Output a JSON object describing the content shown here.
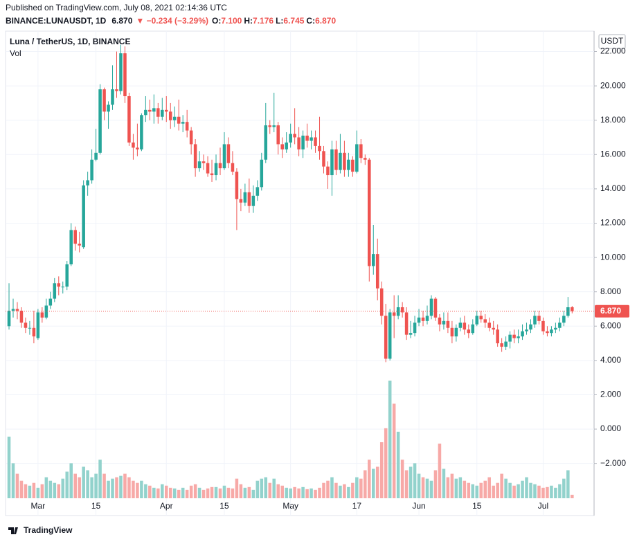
{
  "header": {
    "published": "Published on TradingView.com, July 08, 2021 02:14:36 UTC",
    "symbol": "BINANCE:LUNAUSDT, 1D",
    "price": "6.870",
    "change": "▼ −0.234 (−3.29%)",
    "o_label": "O:",
    "o_value": "7.100",
    "h_label": "H:",
    "h_value": "7.176",
    "l_label": "L:",
    "l_value": "6.745",
    "c_label": "C:",
    "c_value": "6.870",
    "footer": "TradingView"
  },
  "chart_data": {
    "type": "candlestick",
    "title": "Luna / TetherUS, 1D, BINANCE",
    "volume_label": "Vol",
    "currency": "USDT",
    "up_color": "#26a69a",
    "down_color": "#ef5350",
    "volume_up_color": "#92d2cc",
    "volume_down_color": "#f7a9a7",
    "grid": true,
    "last_price": {
      "value": 6.87,
      "label": "6.870"
    },
    "ylim": [
      -4.03,
      23.19
    ],
    "yticks": [
      {
        "value": 22,
        "label": "22.000"
      },
      {
        "value": 20,
        "label": "20.000"
      },
      {
        "value": 18,
        "label": "18.000"
      },
      {
        "value": 16,
        "label": "16.000"
      },
      {
        "value": 14,
        "label": "14.000"
      },
      {
        "value": 12,
        "label": "12.000"
      },
      {
        "value": 10,
        "label": "10.000"
      },
      {
        "value": 8,
        "label": "8.000"
      },
      {
        "value": 6,
        "label": "6.000"
      },
      {
        "value": 4,
        "label": "4.000"
      },
      {
        "value": 2,
        "label": "2.000"
      },
      {
        "value": 0,
        "label": "0.000"
      },
      {
        "value": -2,
        "label": "−2.000"
      }
    ],
    "xlim": [
      -0.84,
      141.3
    ],
    "xticks": [
      {
        "value": 7,
        "label": "Mar"
      },
      {
        "value": 21,
        "label": "15"
      },
      {
        "value": 38,
        "label": "Apr"
      },
      {
        "value": 52,
        "label": "15"
      },
      {
        "value": 68,
        "label": "May"
      },
      {
        "value": 84,
        "label": "17"
      },
      {
        "value": 99,
        "label": "Jun"
      },
      {
        "value": 113,
        "label": "15"
      },
      {
        "value": 129,
        "label": "Jul"
      }
    ],
    "open": [
      6.0,
      6.9,
      7.0,
      6.9,
      6.2,
      5.9,
      5.9,
      5.3,
      6.8,
      6.5,
      7.2,
      7.6,
      8.5,
      8.3,
      8.3,
      9.6,
      11.6,
      10.8,
      10.6,
      14.2,
      14.5,
      15.7,
      16.1,
      19.8,
      18.5,
      18.9,
      19.8,
      19.7,
      21.9,
      19.4,
      16.7,
      16.4,
      16.3,
      18.3,
      18.6,
      18.5,
      18.7,
      18.2,
      18.6,
      18.5,
      18.0,
      18.2,
      17.8,
      17.9,
      17.4,
      16.6,
      15.2,
      15.6,
      15.5,
      14.9,
      14.8,
      15.5,
      15.2,
      16.6,
      15.5,
      15.0,
      13.4,
      13.2,
      13.8,
      13.0,
      13.6,
      14.1,
      15.7,
      17.7,
      17.6,
      17.7,
      16.6,
      16.3,
      16.7,
      17.2,
      17.0,
      16.3,
      17.1,
      16.8,
      17.0,
      16.5,
      16.2,
      15.3,
      14.8,
      16.3,
      15.1,
      16.1,
      15.1,
      15.7,
      15.0,
      16.6,
      15.8,
      15.7,
      9.5,
      10.2,
      8.2,
      6.6,
      4.1,
      6.8,
      6.6,
      7.1,
      6.8,
      5.5,
      5.6,
      6.2,
      6.5,
      6.3,
      6.6,
      7.6,
      6.5,
      6.1,
      6.3,
      5.9,
      5.4,
      5.9,
      6.2,
      5.8,
      5.6,
      6.1,
      6.6,
      6.4,
      6.2,
      5.9,
      5.8,
      5.0,
      4.8,
      5.1,
      5.5,
      5.3,
      5.4,
      5.7,
      5.8,
      6.1,
      6.6,
      6.3,
      5.7,
      5.6,
      5.8,
      5.9,
      6.2,
      6.6,
      7.1
    ],
    "high": [
      8.5,
      7.6,
      7.4,
      7.1,
      6.5,
      6.3,
      6.9,
      7.0,
      7.1,
      7.6,
      8.0,
      8.8,
      8.9,
      8.6,
      9.8,
      12.0,
      11.8,
      11.5,
      14.5,
      15.0,
      16.3,
      17.5,
      20.1,
      19.9,
      19.1,
      21.2,
      22.0,
      22.4,
      22.3,
      19.6,
      17.2,
      17.8,
      18.4,
      19.4,
      19.2,
      19.5,
      19.0,
      19.3,
      19.4,
      19.0,
      18.8,
      19.2,
      18.3,
      18.6,
      17.6,
      16.9,
      16.2,
      16.0,
      15.9,
      15.7,
      16.0,
      16.4,
      17.3,
      17.0,
      16.2,
      15.2,
      14.0,
      14.3,
      14.6,
      14.2,
      14.5,
      16.1,
      19.0,
      18.0,
      19.6,
      17.9,
      17.0,
      17.3,
      17.8,
      18.7,
      17.6,
      17.4,
      17.8,
      17.4,
      17.4,
      18.2,
      16.5,
      15.6,
      16.8,
      16.8,
      17.2,
      16.8,
      16.1,
      15.9,
      17.4,
      16.9,
      16.0,
      15.8,
      11.9,
      11.1,
      8.6,
      7.3,
      7.0,
      7.8,
      7.8,
      7.4,
      7.1,
      6.3,
      6.6,
      7.0,
      6.9,
      7.2,
      7.8,
      7.7,
      6.7,
      6.8,
      6.8,
      6.3,
      6.1,
      6.5,
      6.6,
      6.1,
      6.4,
      6.9,
      6.9,
      6.7,
      6.5,
      6.3,
      6.1,
      5.3,
      5.4,
      5.7,
      5.8,
      5.8,
      6.1,
      6.2,
      6.4,
      6.9,
      6.9,
      6.5,
      6.0,
      6.0,
      6.2,
      6.5,
      6.9,
      7.7,
      7.176
    ],
    "low": [
      5.8,
      6.5,
      6.4,
      5.9,
      5.6,
      5.5,
      5.0,
      5.2,
      6.2,
      6.4,
      7.0,
      7.4,
      7.8,
      7.9,
      8.1,
      9.5,
      10.4,
      10.3,
      10.5,
      13.6,
      14.3,
      15.6,
      16.0,
      18.0,
      17.5,
      18.6,
      19.3,
      19.5,
      19.0,
      16.5,
      15.7,
      15.9,
      16.2,
      17.9,
      18.0,
      17.8,
      17.8,
      18.0,
      17.9,
      17.5,
      17.6,
      17.4,
      17.3,
      17.0,
      16.0,
      14.7,
      15.0,
      15.1,
      14.7,
      14.4,
      14.5,
      14.8,
      15.1,
      15.2,
      14.8,
      11.6,
      12.7,
      13.0,
      12.6,
      12.6,
      13.3,
      13.9,
      15.5,
      17.2,
      17.3,
      16.0,
      15.8,
      16.1,
      16.4,
      16.6,
      15.9,
      15.8,
      16.4,
      16.3,
      16.1,
      15.7,
      14.9,
      14.0,
      13.6,
      14.8,
      14.9,
      14.7,
      14.7,
      14.7,
      14.9,
      15.5,
      15.4,
      8.6,
      9.0,
      7.5,
      6.1,
      3.9,
      4.0,
      5.3,
      6.4,
      6.5,
      5.2,
      5.3,
      5.4,
      6.0,
      6.0,
      6.1,
      6.4,
      6.3,
      5.7,
      5.8,
      5.6,
      5.0,
      5.1,
      5.7,
      5.5,
      5.3,
      5.5,
      6.0,
      6.2,
      5.9,
      5.7,
      5.5,
      4.8,
      4.5,
      4.6,
      4.7,
      5.0,
      5.0,
      5.2,
      5.5,
      5.6,
      5.9,
      6.1,
      5.5,
      5.4,
      5.4,
      5.6,
      5.7,
      6.0,
      6.5,
      6.745
    ],
    "close": [
      6.9,
      7.0,
      6.9,
      6.2,
      5.9,
      5.9,
      5.4,
      6.8,
      6.5,
      7.2,
      7.6,
      8.5,
      8.3,
      8.3,
      9.6,
      11.6,
      10.8,
      10.7,
      14.2,
      14.5,
      15.7,
      16.1,
      19.8,
      18.5,
      18.9,
      19.8,
      19.7,
      21.9,
      19.4,
      16.7,
      16.4,
      16.3,
      18.3,
      18.6,
      18.5,
      18.7,
      18.2,
      18.6,
      18.5,
      18.0,
      18.2,
      17.8,
      17.9,
      17.4,
      16.6,
      15.2,
      15.6,
      15.5,
      14.9,
      14.8,
      15.5,
      15.2,
      16.6,
      15.5,
      15.0,
      13.4,
      13.2,
      13.8,
      13.0,
      13.6,
      14.1,
      15.7,
      17.7,
      17.6,
      17.7,
      16.6,
      16.3,
      16.7,
      17.2,
      17.0,
      16.3,
      17.1,
      16.8,
      17.0,
      16.5,
      16.2,
      15.3,
      14.8,
      16.3,
      15.1,
      16.1,
      15.1,
      15.7,
      15.0,
      16.6,
      15.8,
      15.7,
      9.5,
      10.2,
      8.2,
      6.6,
      4.1,
      6.8,
      6.6,
      7.1,
      6.8,
      5.5,
      5.6,
      6.2,
      6.5,
      6.3,
      6.6,
      7.6,
      6.5,
      6.1,
      6.3,
      5.9,
      5.4,
      5.9,
      6.2,
      5.8,
      5.6,
      6.1,
      6.6,
      6.4,
      6.2,
      5.9,
      5.8,
      5.0,
      4.8,
      5.1,
      5.5,
      5.3,
      5.4,
      5.7,
      5.8,
      6.1,
      6.6,
      6.3,
      5.7,
      5.6,
      5.8,
      5.9,
      6.2,
      6.6,
      7.1,
      6.87
    ],
    "volume": [
      88,
      50,
      35,
      25,
      20,
      18,
      22,
      15,
      20,
      30,
      25,
      22,
      20,
      28,
      38,
      50,
      35,
      30,
      45,
      40,
      30,
      35,
      55,
      35,
      25,
      28,
      30,
      32,
      35,
      30,
      25,
      22,
      25,
      20,
      18,
      15,
      14,
      20,
      18,
      15,
      14,
      12,
      15,
      12,
      18,
      20,
      15,
      12,
      14,
      16,
      16,
      14,
      18,
      15,
      14,
      28,
      20,
      15,
      16,
      12,
      25,
      28,
      30,
      22,
      28,
      20,
      18,
      15,
      14,
      16,
      14,
      16,
      13,
      14,
      12,
      15,
      22,
      25,
      30,
      22,
      18,
      20,
      16,
      22,
      30,
      28,
      40,
      55,
      42,
      45,
      80,
      100,
      168,
      135,
      95,
      55,
      40,
      45,
      50,
      35,
      30,
      28,
      25,
      40,
      78,
      42,
      30,
      35,
      28,
      30,
      25,
      22,
      20,
      18,
      22,
      25,
      30,
      18,
      22,
      35,
      28,
      22,
      18,
      20,
      25,
      30,
      22,
      20,
      18,
      15,
      16,
      18,
      15,
      20,
      28,
      40,
      5
    ]
  }
}
